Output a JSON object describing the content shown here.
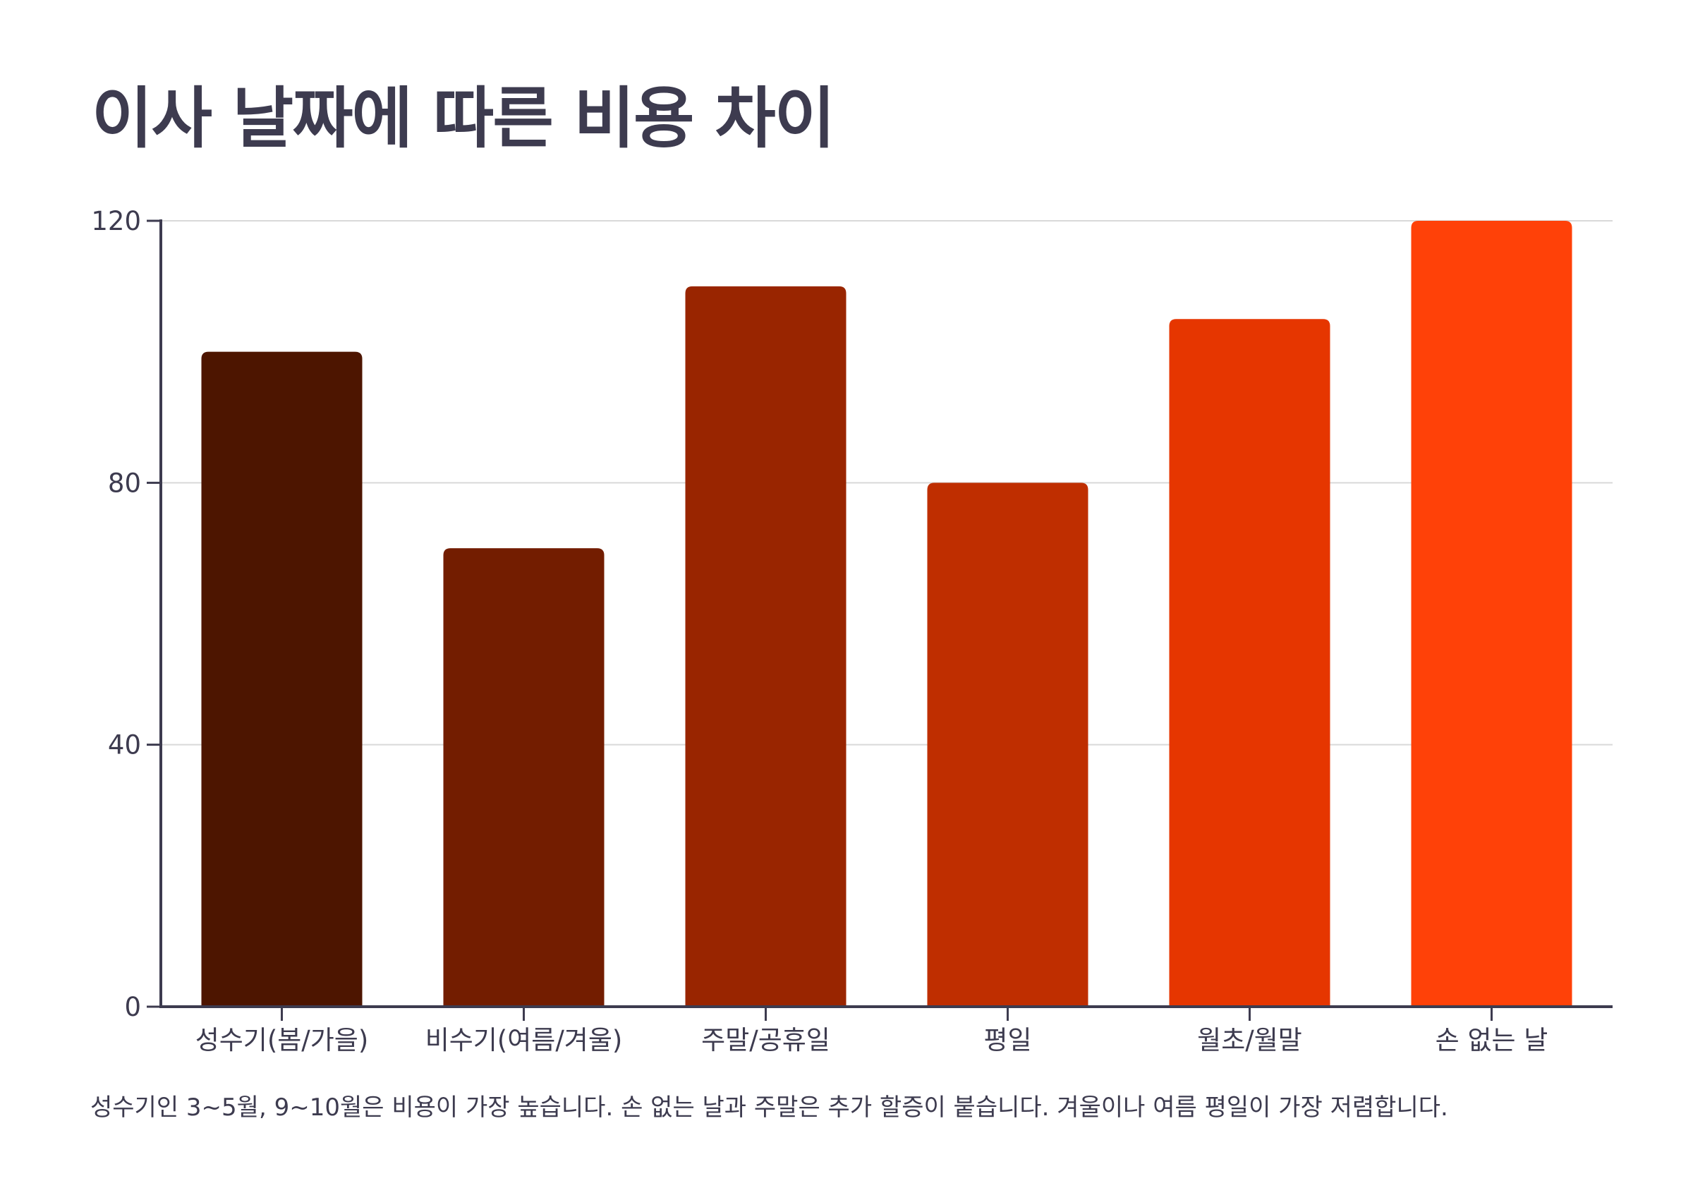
{
  "title": "이사 날짜에 따른 비용 차이",
  "note": "성수기인 3~5월, 9~10월은 비용이 가장 높습니다. 손 없는 날과 주말은 추가 할증이 붙습니다. 겨울이나 여름 평일이 가장 저렴합니다.",
  "chart_data": {
    "type": "bar",
    "categories": [
      "성수기(봄/가을)",
      "비수기(여름/겨울)",
      "주말/공휴일",
      "평일",
      "월초/월말",
      "손 없는 날"
    ],
    "values": [
      100,
      70,
      110,
      80,
      105,
      120
    ],
    "colors": [
      "#4d1500",
      "#731d00",
      "#992500",
      "#bf2e00",
      "#e63600",
      "#ff4108"
    ],
    "yticks": [
      0,
      40,
      80,
      120
    ],
    "ylim": [
      0,
      120
    ],
    "grid": true,
    "legend": "none"
  }
}
